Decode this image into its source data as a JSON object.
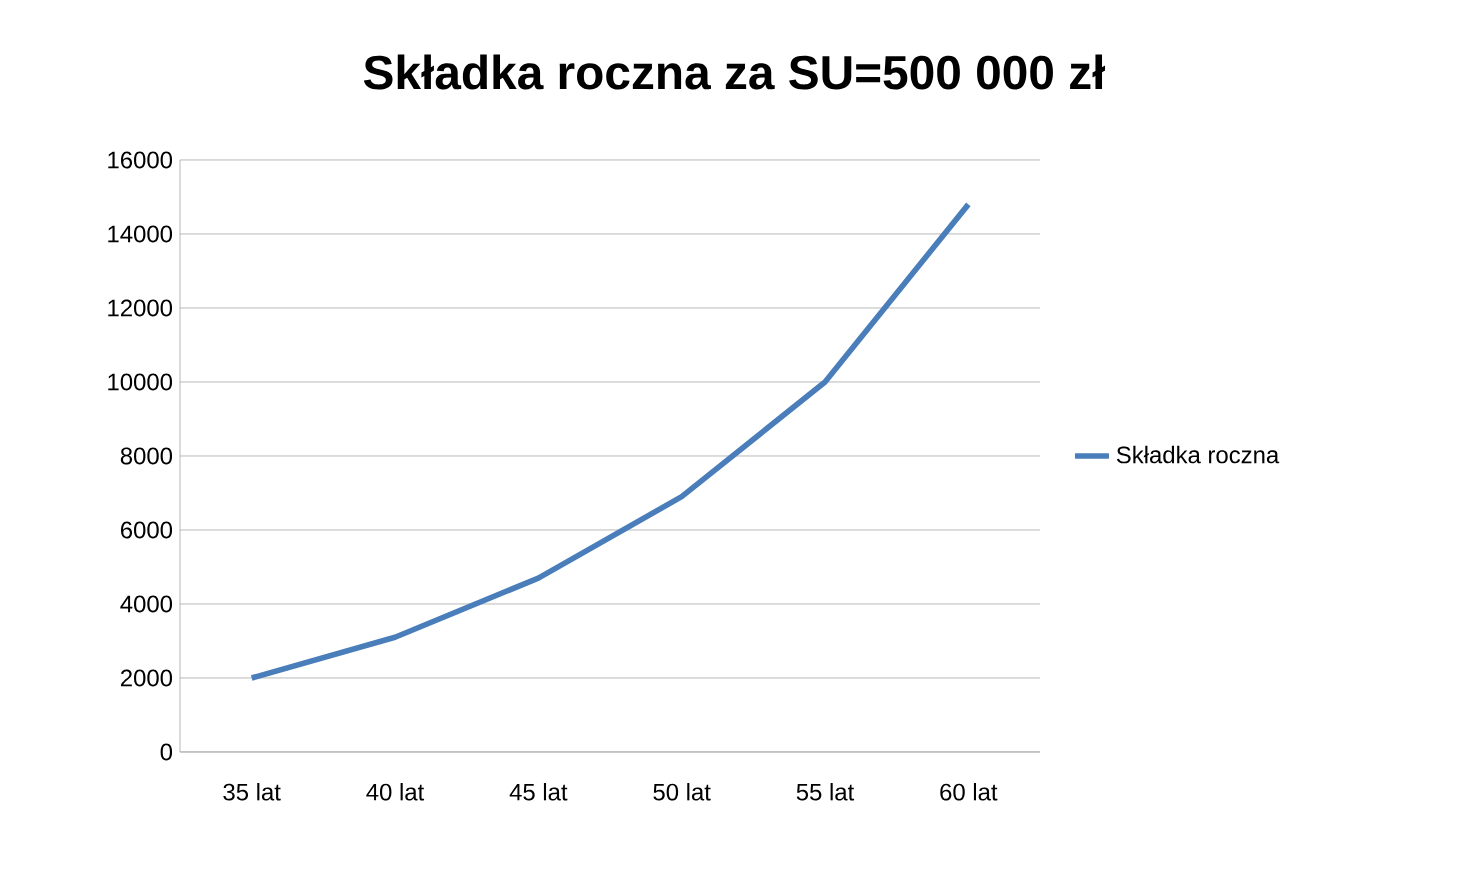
{
  "chart_data": {
    "type": "line",
    "title": "Składka roczna za  SU=500 000 zł",
    "categories": [
      "35 lat",
      "40 lat",
      "45 lat",
      "50 lat",
      "55 lat",
      "60 lat"
    ],
    "series": [
      {
        "name": "Składka roczna",
        "color": "#4a7ebb",
        "values": [
          2000,
          3100,
          4700,
          6900,
          10000,
          14800
        ]
      }
    ],
    "ylim": [
      0,
      16000
    ],
    "yticks": [
      0,
      2000,
      4000,
      6000,
      8000,
      10000,
      12000,
      14000,
      16000
    ],
    "grid": "y",
    "legend": "right",
    "marker": "none",
    "line_style": "solid"
  }
}
